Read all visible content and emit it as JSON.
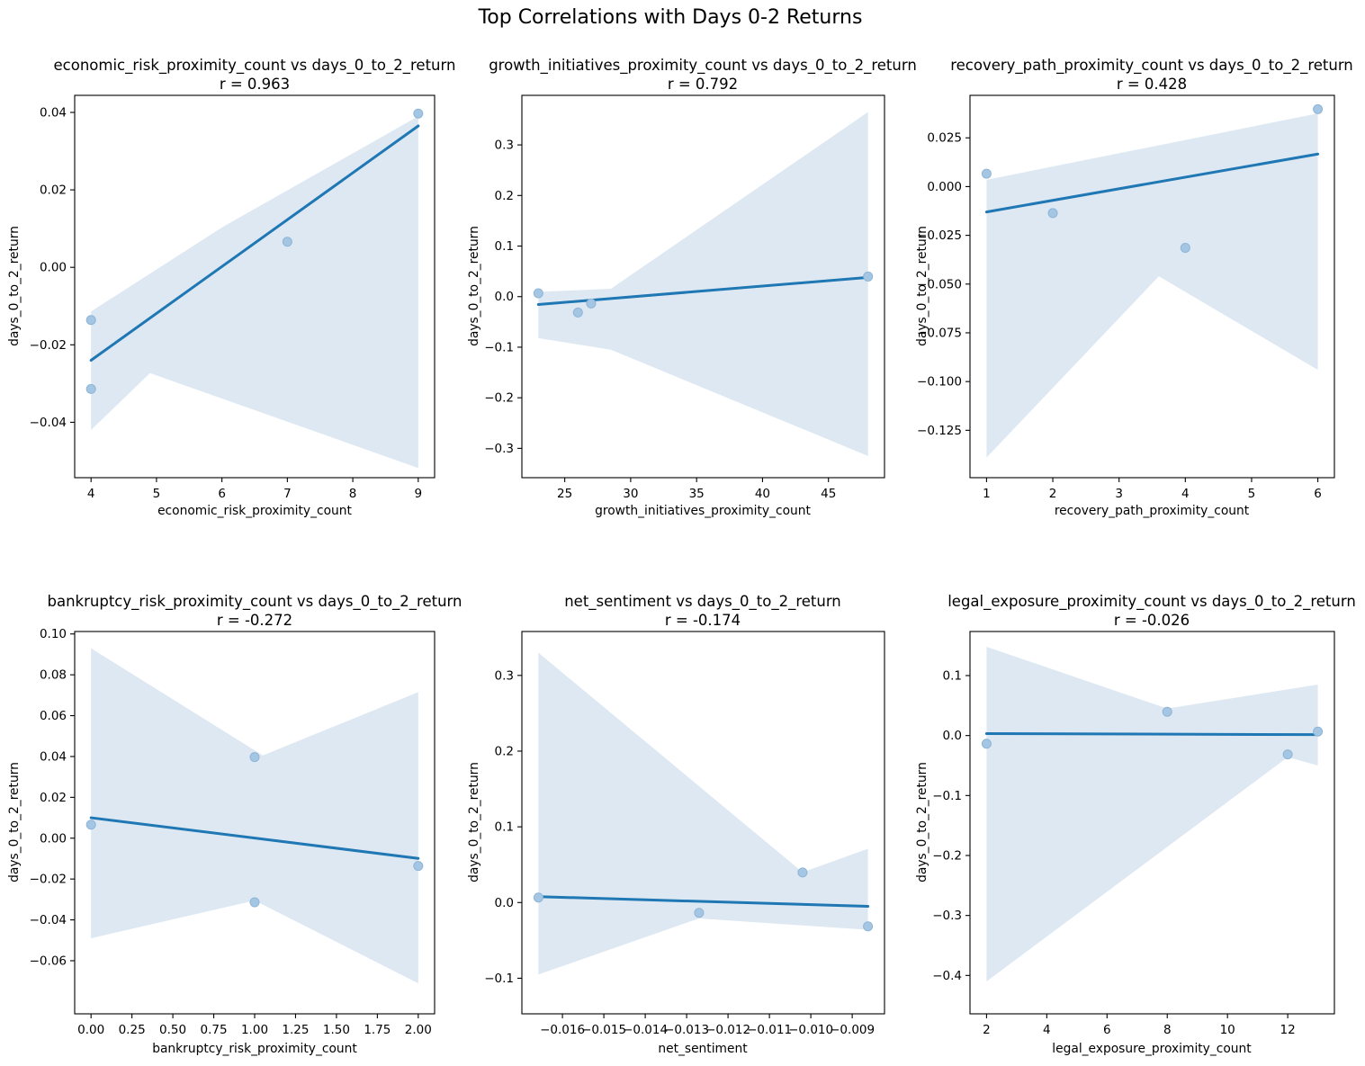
{
  "suptitle": "Top Correlations with Days 0-2 Returns",
  "colors": {
    "line": "#1f77b4",
    "band": "#dde8f3",
    "point_fill": "#a5c6e2",
    "point_edge": "#8db5d8",
    "axis": "#000000"
  },
  "chart_data": [
    {
      "type": "scatter",
      "title": "economic_risk_proximity_count vs days_0_to_2_return",
      "r_label": "r = 0.963",
      "r": 0.963,
      "xlabel": "economic_risk_proximity_count",
      "ylabel": "days_0_to_2_return",
      "xlim": [
        3.75,
        9.25
      ],
      "ylim": [
        -0.0543,
        0.0444
      ],
      "x_ticks": [
        {
          "v": 4,
          "label": "4"
        },
        {
          "v": 5,
          "label": "5"
        },
        {
          "v": 6,
          "label": "6"
        },
        {
          "v": 7,
          "label": "7"
        },
        {
          "v": 8,
          "label": "8"
        },
        {
          "v": 9,
          "label": "9"
        }
      ],
      "y_ticks": [
        {
          "v": 0.04,
          "label": "0.04"
        },
        {
          "v": 0.02,
          "label": "0.02"
        },
        {
          "v": 0,
          "label": "0.00"
        },
        {
          "v": -0.02,
          "label": "−0.02"
        },
        {
          "v": -0.04,
          "label": "−0.04"
        }
      ],
      "points": [
        [
          4,
          -0.0136
        ],
        [
          4,
          -0.0314
        ],
        [
          7,
          0.0066
        ],
        [
          9,
          0.0397
        ]
      ],
      "reg_line": [
        [
          4,
          -0.024
        ],
        [
          9,
          0.0365
        ]
      ],
      "ci_band": {
        "upper": [
          [
            4,
            -0.0114
          ],
          [
            6,
            0.0103
          ],
          [
            9,
            0.039
          ]
        ],
        "lower": [
          [
            4,
            -0.042
          ],
          [
            4.9,
            -0.0273
          ],
          [
            9,
            -0.0518
          ]
        ]
      }
    },
    {
      "type": "scatter",
      "title": "growth_initiatives_proximity_count vs days_0_to_2_return",
      "r_label": "r = 0.792",
      "r": 0.792,
      "xlabel": "growth_initiatives_proximity_count",
      "ylabel": "days_0_to_2_return",
      "xlim": [
        21.75,
        49.25
      ],
      "ylim": [
        -0.358,
        0.398
      ],
      "x_ticks": [
        {
          "v": 25,
          "label": "25"
        },
        {
          "v": 30,
          "label": "30"
        },
        {
          "v": 35,
          "label": "35"
        },
        {
          "v": 40,
          "label": "40"
        },
        {
          "v": 45,
          "label": "45"
        }
      ],
      "y_ticks": [
        {
          "v": 0.3,
          "label": "0.3"
        },
        {
          "v": 0.2,
          "label": "0.2"
        },
        {
          "v": 0.1,
          "label": "0.1"
        },
        {
          "v": 0,
          "label": "0.0"
        },
        {
          "v": -0.1,
          "label": "−0.1"
        },
        {
          "v": -0.2,
          "label": "−0.2"
        },
        {
          "v": -0.3,
          "label": "−0.3"
        }
      ],
      "points": [
        [
          23,
          0.0066
        ],
        [
          26,
          -0.0314
        ],
        [
          27,
          -0.0136
        ],
        [
          48,
          0.0397
        ]
      ],
      "reg_line": [
        [
          23,
          -0.0155
        ],
        [
          48,
          0.038
        ]
      ],
      "ci_band": {
        "upper": [
          [
            23,
            0.0095
          ],
          [
            28.5,
            0.0155
          ],
          [
            48,
            0.365
          ]
        ],
        "lower": [
          [
            23,
            -0.082
          ],
          [
            28.5,
            -0.105
          ],
          [
            48,
            -0.315
          ]
        ]
      }
    },
    {
      "type": "scatter",
      "title": "recovery_path_proximity_count vs days_0_to_2_return",
      "r_label": "r = 0.428",
      "r": 0.428,
      "xlabel": "recovery_path_proximity_count",
      "ylabel": "days_0_to_2_return",
      "xlim": [
        0.75,
        6.25
      ],
      "ylim": [
        -0.1493,
        0.0468
      ],
      "x_ticks": [
        {
          "v": 1,
          "label": "1"
        },
        {
          "v": 2,
          "label": "2"
        },
        {
          "v": 3,
          "label": "3"
        },
        {
          "v": 4,
          "label": "4"
        },
        {
          "v": 5,
          "label": "5"
        },
        {
          "v": 6,
          "label": "6"
        }
      ],
      "y_ticks": [
        {
          "v": 0.025,
          "label": "0.025"
        },
        {
          "v": 0,
          "label": "0.000"
        },
        {
          "v": -0.025,
          "label": "−0.025"
        },
        {
          "v": -0.05,
          "label": "−0.050"
        },
        {
          "v": -0.075,
          "label": "−0.075"
        },
        {
          "v": -0.1,
          "label": "−0.100"
        },
        {
          "v": -0.125,
          "label": "−0.125"
        }
      ],
      "points": [
        [
          1,
          0.0066
        ],
        [
          2,
          -0.0136
        ],
        [
          4,
          -0.0314
        ],
        [
          6,
          0.0397
        ]
      ],
      "reg_line": [
        [
          1,
          -0.013
        ],
        [
          6,
          0.0167
        ]
      ],
      "ci_band": {
        "upper": [
          [
            1,
            0.0035
          ],
          [
            6,
            0.0375
          ]
        ],
        "lower": [
          [
            1,
            -0.139
          ],
          [
            3.6,
            -0.046
          ],
          [
            6,
            -0.094
          ]
        ]
      }
    },
    {
      "type": "scatter",
      "title": "bankruptcy_risk_proximity_count vs days_0_to_2_return",
      "r_label": "r = -0.272",
      "r": -0.272,
      "xlabel": "bankruptcy_risk_proximity_count",
      "ylabel": "days_0_to_2_return",
      "xlim": [
        -0.1,
        2.1
      ],
      "ylim": [
        -0.086,
        0.1012
      ],
      "x_ticks": [
        {
          "v": 0,
          "label": "0.00"
        },
        {
          "v": 0.25,
          "label": "0.25"
        },
        {
          "v": 0.5,
          "label": "0.50"
        },
        {
          "v": 0.75,
          "label": "0.75"
        },
        {
          "v": 1,
          "label": "1.00"
        },
        {
          "v": 1.25,
          "label": "1.25"
        },
        {
          "v": 1.5,
          "label": "1.50"
        },
        {
          "v": 1.75,
          "label": "1.75"
        },
        {
          "v": 2,
          "label": "2.00"
        }
      ],
      "y_ticks": [
        {
          "v": 0.1,
          "label": "0.10"
        },
        {
          "v": 0.08,
          "label": "0.08"
        },
        {
          "v": 0.06,
          "label": "0.06"
        },
        {
          "v": 0.04,
          "label": "0.04"
        },
        {
          "v": 0.02,
          "label": "0.02"
        },
        {
          "v": 0,
          "label": "0.00"
        },
        {
          "v": -0.02,
          "label": "−0.02"
        },
        {
          "v": -0.04,
          "label": "−0.04"
        },
        {
          "v": -0.06,
          "label": "−0.06"
        }
      ],
      "points": [
        [
          0,
          0.0066
        ],
        [
          1,
          0.0397
        ],
        [
          1,
          -0.0314
        ],
        [
          2,
          -0.0136
        ]
      ],
      "reg_line": [
        [
          0,
          0.01
        ],
        [
          2,
          -0.0099
        ]
      ],
      "ci_band": {
        "upper": [
          [
            0,
            0.093
          ],
          [
            1.05,
            0.0405
          ],
          [
            2,
            0.0715
          ]
        ],
        "lower": [
          [
            0,
            -0.049
          ],
          [
            1,
            -0.0305
          ],
          [
            2,
            -0.0711
          ]
        ]
      }
    },
    {
      "type": "scatter",
      "title": "net_sentiment vs days_0_to_2_return",
      "r_label": "r = -0.174",
      "r": -0.174,
      "xlabel": "net_sentiment",
      "ylabel": "days_0_to_2_return",
      "xlim": [
        -0.01698,
        -0.00822
      ],
      "ylim": [
        -0.147,
        0.358
      ],
      "x_ticks": [
        {
          "v": -0.016,
          "label": "−0.016"
        },
        {
          "v": -0.015,
          "label": "−0.015"
        },
        {
          "v": -0.014,
          "label": "−0.014"
        },
        {
          "v": -0.013,
          "label": "−0.013"
        },
        {
          "v": -0.012,
          "label": "−0.012"
        },
        {
          "v": -0.011,
          "label": "−0.011"
        },
        {
          "v": -0.01,
          "label": "−0.010"
        },
        {
          "v": -0.009,
          "label": "−0.009"
        }
      ],
      "y_ticks": [
        {
          "v": 0.3,
          "label": "0.3"
        },
        {
          "v": 0.2,
          "label": "0.2"
        },
        {
          "v": 0.1,
          "label": "0.1"
        },
        {
          "v": 0,
          "label": "0.0"
        },
        {
          "v": -0.1,
          "label": "−0.1"
        }
      ],
      "points": [
        [
          -0.01658,
          0.0066
        ],
        [
          -0.0127,
          -0.0136
        ],
        [
          -0.0102,
          0.0397
        ],
        [
          -0.00862,
          -0.0314
        ]
      ],
      "reg_line": [
        [
          -0.01658,
          0.0078
        ],
        [
          -0.00862,
          -0.005
        ]
      ],
      "ci_band": {
        "upper": [
          [
            -0.01658,
            0.33
          ],
          [
            -0.0102,
            0.04
          ],
          [
            -0.00862,
            0.071
          ]
        ],
        "lower": [
          [
            -0.01658,
            -0.095
          ],
          [
            -0.0127,
            -0.021
          ],
          [
            -0.00862,
            -0.036
          ]
        ]
      }
    },
    {
      "type": "scatter",
      "title": "legal_exposure_proximity_count vs days_0_to_2_return",
      "r_label": "r = -0.026",
      "r": -0.026,
      "xlabel": "legal_exposure_proximity_count",
      "ylabel": "days_0_to_2_return",
      "xlim": [
        1.45,
        13.55
      ],
      "ylim": [
        -0.464,
        0.1735
      ],
      "x_ticks": [
        {
          "v": 2,
          "label": "2"
        },
        {
          "v": 4,
          "label": "4"
        },
        {
          "v": 6,
          "label": "6"
        },
        {
          "v": 8,
          "label": "8"
        },
        {
          "v": 10,
          "label": "10"
        },
        {
          "v": 12,
          "label": "12"
        }
      ],
      "y_ticks": [
        {
          "v": 0.1,
          "label": "0.1"
        },
        {
          "v": 0,
          "label": "0.0"
        },
        {
          "v": -0.1,
          "label": "−0.1"
        },
        {
          "v": -0.2,
          "label": "−0.2"
        },
        {
          "v": -0.3,
          "label": "−0.3"
        },
        {
          "v": -0.4,
          "label": "−0.4"
        }
      ],
      "points": [
        [
          2,
          -0.0136
        ],
        [
          8,
          0.0397
        ],
        [
          12,
          -0.0314
        ],
        [
          13,
          0.0066
        ]
      ],
      "reg_line": [
        [
          2,
          0.0033
        ],
        [
          13,
          0.0015
        ]
      ],
      "ci_band": {
        "upper": [
          [
            2,
            0.148
          ],
          [
            8,
            0.045
          ],
          [
            13,
            0.085
          ]
        ],
        "lower": [
          [
            2,
            -0.41
          ],
          [
            12,
            -0.036
          ],
          [
            13,
            -0.05
          ]
        ]
      }
    }
  ]
}
